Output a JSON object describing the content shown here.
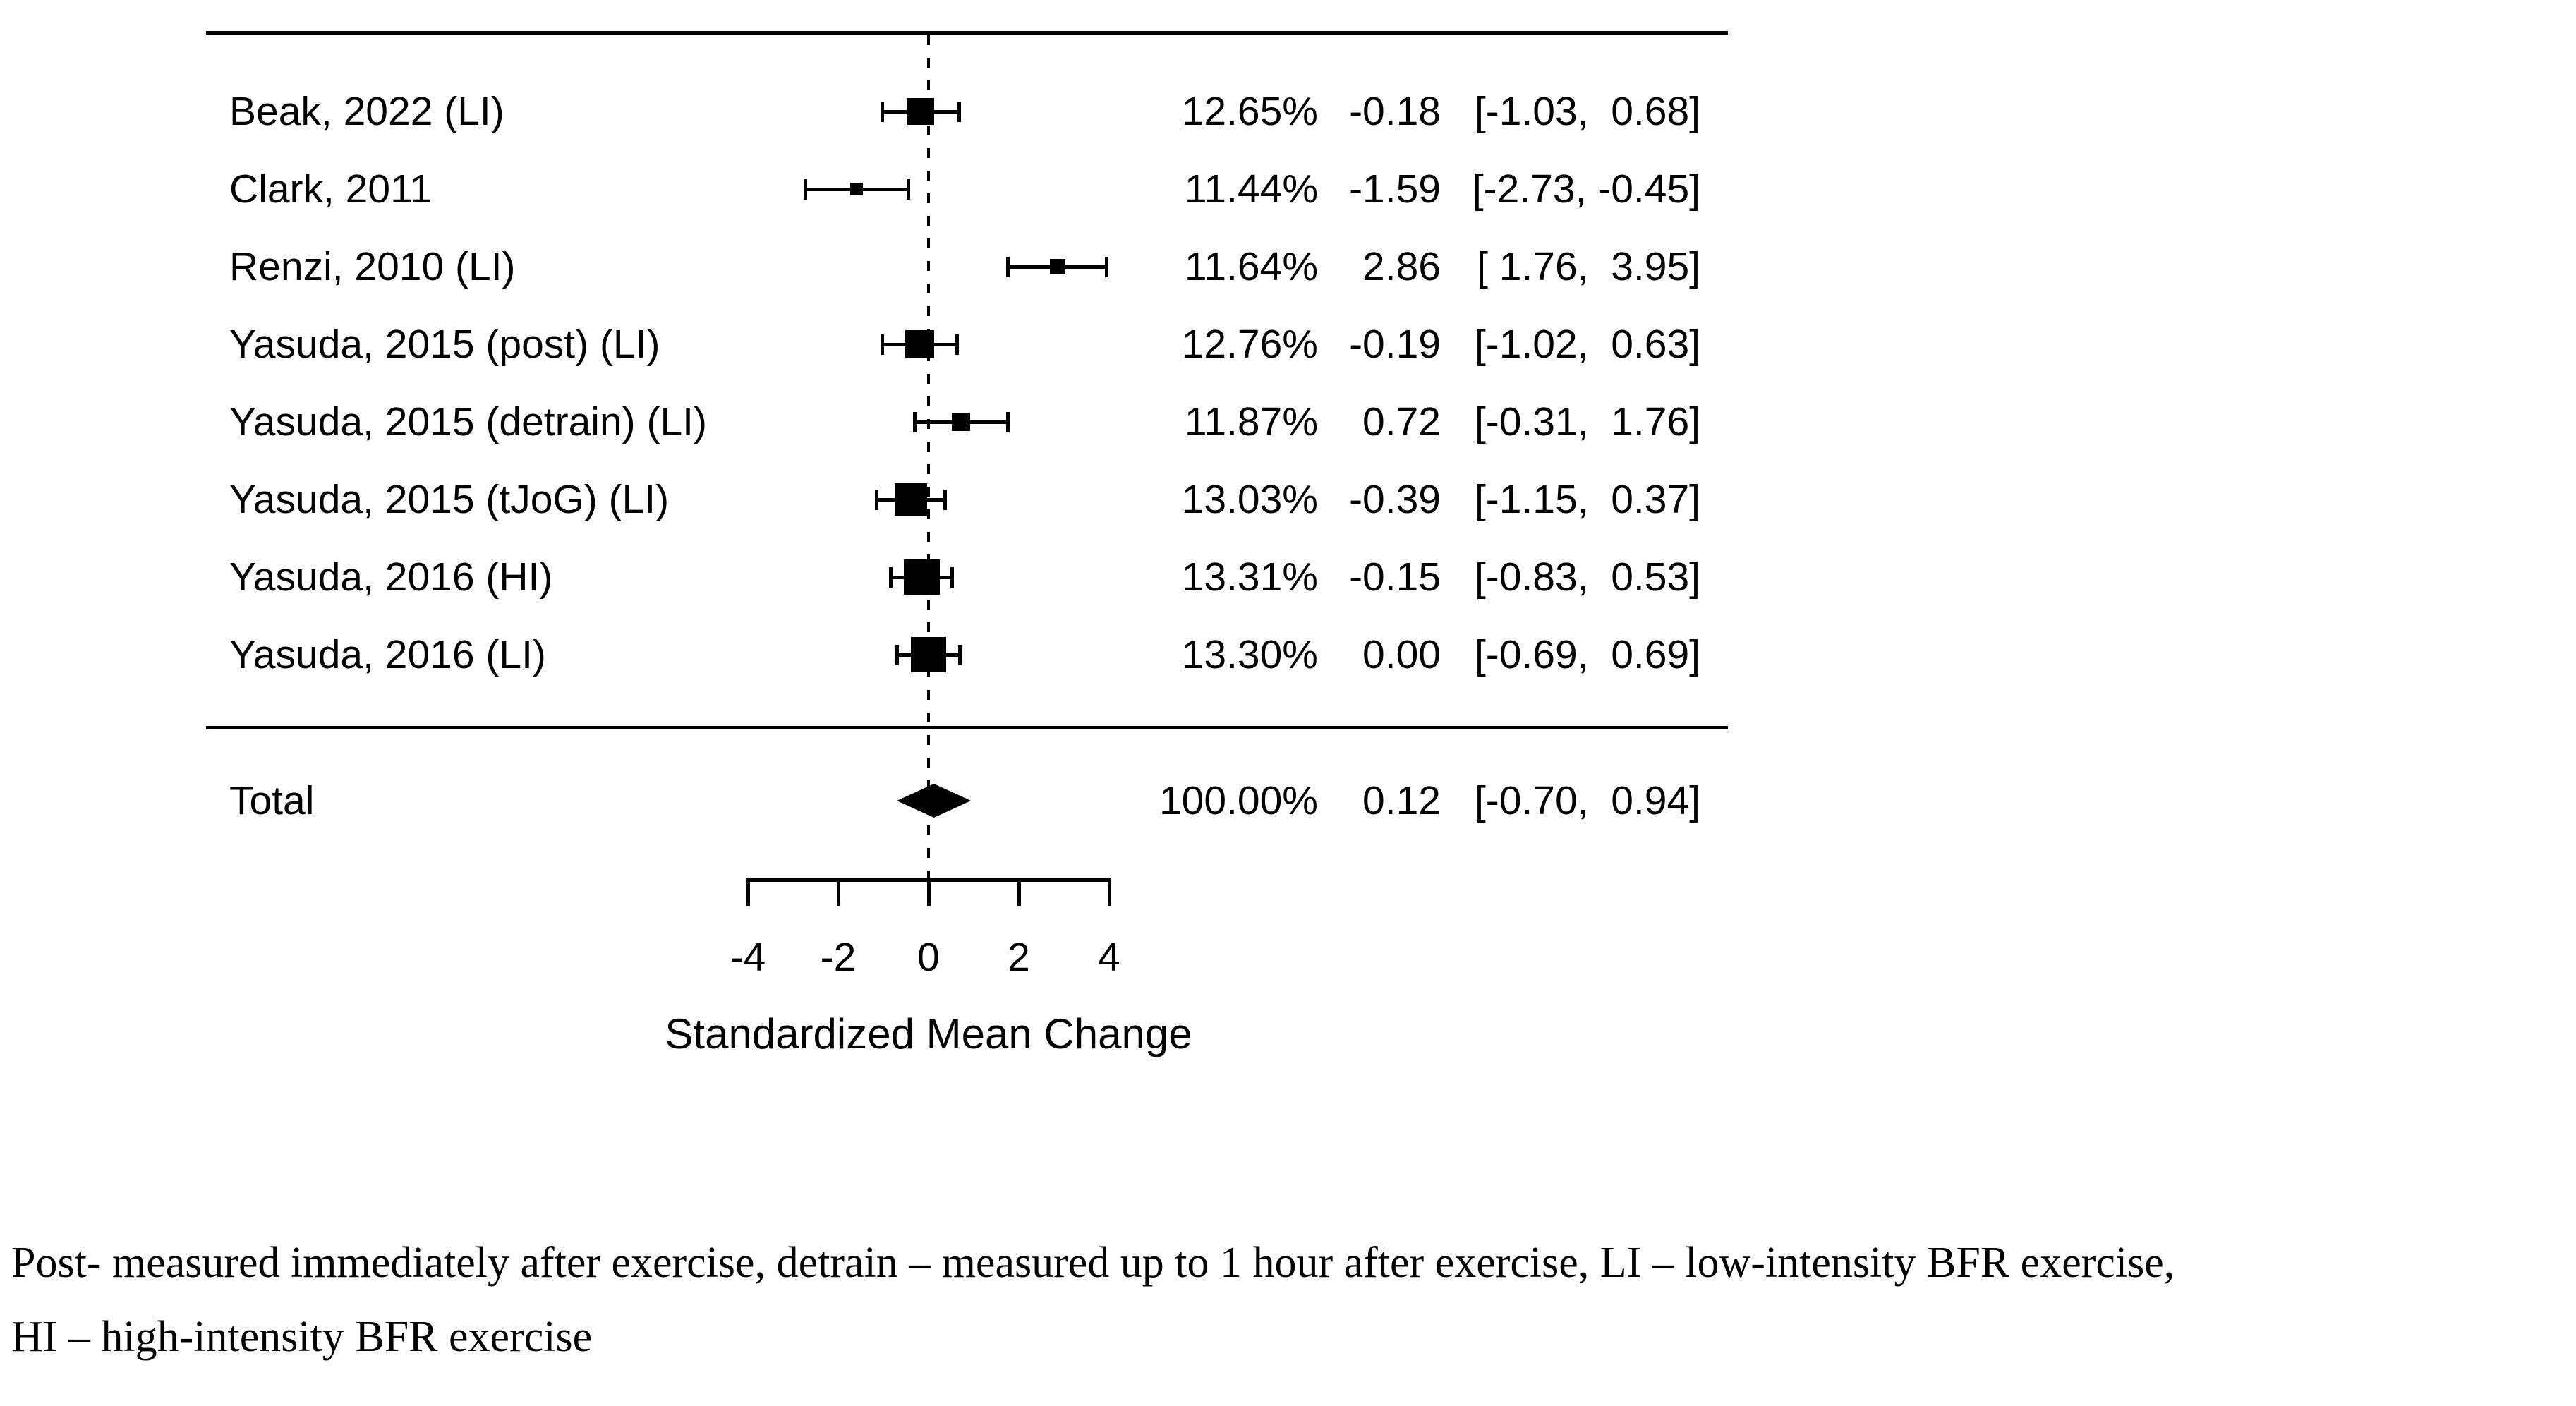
{
  "chart_data": {
    "type": "forest",
    "title": "",
    "xlabel": "Standardized Mean Change",
    "xlim": [
      -4,
      4
    ],
    "x_ticks": [
      -4,
      -2,
      0,
      2,
      4
    ],
    "x_tick_labels": [
      "-4",
      "-2",
      "0",
      "2",
      "4"
    ],
    "zero_reference_line": 0,
    "studies": [
      {
        "label": "Beak, 2022 (LI)",
        "weight": "12.65%",
        "weight_pct": 12.65,
        "est": -0.18,
        "ci_lower": -1.03,
        "ci_upper": 0.68,
        "est_label": "-0.18",
        "ci_label": "[-1.03,  0.68]"
      },
      {
        "label": "Clark, 2011",
        "weight": "11.44%",
        "weight_pct": 11.44,
        "est": -1.59,
        "ci_lower": -2.73,
        "ci_upper": -0.45,
        "est_label": "-1.59",
        "ci_label": "[-2.73, -0.45]"
      },
      {
        "label": "Renzi, 2010 (LI)",
        "weight": "11.64%",
        "weight_pct": 11.64,
        "est": 2.86,
        "ci_lower": 1.76,
        "ci_upper": 3.95,
        "est_label": "2.86",
        "ci_label": "[ 1.76,  3.95]"
      },
      {
        "label": "Yasuda, 2015 (post) (LI)",
        "weight": "12.76%",
        "weight_pct": 12.76,
        "est": -0.19,
        "ci_lower": -1.02,
        "ci_upper": 0.63,
        "est_label": "-0.19",
        "ci_label": "[-1.02,  0.63]"
      },
      {
        "label": "Yasuda, 2015 (detrain) (LI)",
        "weight": "11.87%",
        "weight_pct": 11.87,
        "est": 0.72,
        "ci_lower": -0.31,
        "ci_upper": 1.76,
        "est_label": "0.72",
        "ci_label": "[-0.31,  1.76]"
      },
      {
        "label": "Yasuda, 2015 (tJoG) (LI)",
        "weight": "13.03%",
        "weight_pct": 13.03,
        "est": -0.39,
        "ci_lower": -1.15,
        "ci_upper": 0.37,
        "est_label": "-0.39",
        "ci_label": "[-1.15,  0.37]"
      },
      {
        "label": "Yasuda, 2016 (HI)",
        "weight": "13.31%",
        "weight_pct": 13.31,
        "est": -0.15,
        "ci_lower": -0.83,
        "ci_upper": 0.53,
        "est_label": "-0.15",
        "ci_label": "[-0.83,  0.53]"
      },
      {
        "label": "Yasuda, 2016 (LI)",
        "weight": "13.30%",
        "weight_pct": 13.3,
        "est": 0.0,
        "ci_lower": -0.69,
        "ci_upper": 0.69,
        "est_label": "0.00",
        "ci_label": "[-0.69,  0.69]"
      }
    ],
    "total": {
      "label": "Total",
      "weight": "100.00%",
      "weight_pct": 100.0,
      "est": 0.12,
      "ci_lower": -0.7,
      "ci_upper": 0.94,
      "est_label": "0.12",
      "ci_label": "[-0.70,  0.94]"
    }
  },
  "footnote": {
    "line1": "Post- measured immediately after exercise, detrain – measured up to 1 hour after exercise, LI – low-intensity BFR exercise,",
    "line2": "HI – high-intensity BFR exercise"
  }
}
